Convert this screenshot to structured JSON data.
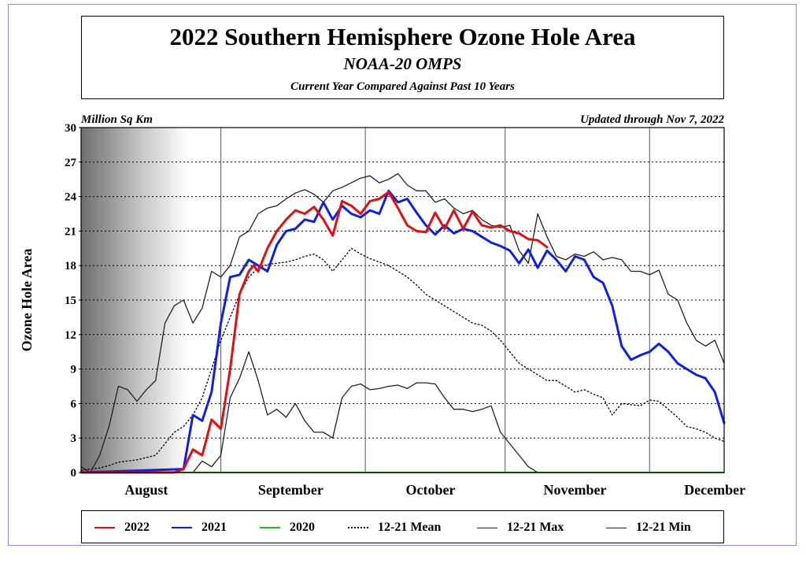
{
  "header": {
    "title": "2022 Southern Hemisphere Ozone Hole Area",
    "subtitle": "NOAA-20 OMPS",
    "note": "Current Year Compared Against Past 10 Years"
  },
  "chart_data": {
    "type": "line",
    "units_label": "Million Sq Km",
    "updated_label": "Updated through Nov 7, 2022",
    "ylabel": "Ozone Hole Area",
    "ylim": [
      0,
      30
    ],
    "yticks": [
      0,
      3,
      6,
      9,
      12,
      15,
      18,
      21,
      24,
      27,
      30
    ],
    "xlim": [
      0,
      138
    ],
    "x_unit": "days since July 17",
    "month_labels": [
      {
        "label": "August",
        "x": 14
      },
      {
        "label": "September",
        "x": 45
      },
      {
        "label": "October",
        "x": 75
      },
      {
        "label": "November",
        "x": 106
      },
      {
        "label": "December",
        "x": 136
      }
    ],
    "month_boundaries": [
      30,
      61,
      91,
      122
    ],
    "grid": true,
    "shaded_region": {
      "x_start": 0,
      "x_end": 23,
      "note": "polar night shading"
    },
    "series": [
      {
        "name": "2022",
        "color": "#e01010",
        "style": "solid",
        "width": 3,
        "points": [
          [
            0,
            0
          ],
          [
            20,
            0
          ],
          [
            22,
            0.3
          ],
          [
            24,
            2
          ],
          [
            26,
            1.5
          ],
          [
            28,
            4.6
          ],
          [
            30,
            3.8
          ],
          [
            32,
            9
          ],
          [
            34,
            15.5
          ],
          [
            36,
            17.5
          ],
          [
            37,
            18
          ],
          [
            38,
            17.5
          ],
          [
            39,
            18.5
          ],
          [
            40,
            19.5
          ],
          [
            42,
            21
          ],
          [
            44,
            22
          ],
          [
            46,
            22.8
          ],
          [
            48,
            22.5
          ],
          [
            50,
            23.1
          ],
          [
            52,
            22
          ],
          [
            54,
            20.6
          ],
          [
            56,
            23.6
          ],
          [
            58,
            23.2
          ],
          [
            60,
            22.5
          ],
          [
            62,
            23.6
          ],
          [
            64,
            23.8
          ],
          [
            66,
            24.4
          ],
          [
            68,
            23
          ],
          [
            70,
            21.5
          ],
          [
            72,
            21
          ],
          [
            74,
            20.9
          ],
          [
            76,
            22.6
          ],
          [
            78,
            21.2
          ],
          [
            80,
            22.8
          ],
          [
            82,
            21.2
          ],
          [
            84,
            22.7
          ],
          [
            86,
            21.5
          ],
          [
            88,
            21.3
          ],
          [
            90,
            21.5
          ],
          [
            92,
            21
          ],
          [
            94,
            20.8
          ],
          [
            96,
            20.3
          ],
          [
            98,
            20.2
          ],
          [
            100,
            19.6
          ]
        ]
      },
      {
        "name": "2021",
        "color": "#1020e0",
        "style": "solid",
        "width": 3,
        "points": [
          [
            0,
            0
          ],
          [
            22,
            0.3
          ],
          [
            24,
            5
          ],
          [
            26,
            4.5
          ],
          [
            28,
            7
          ],
          [
            30,
            13
          ],
          [
            32,
            17
          ],
          [
            34,
            17.2
          ],
          [
            36,
            18.5
          ],
          [
            38,
            18
          ],
          [
            40,
            17.5
          ],
          [
            42,
            19.8
          ],
          [
            44,
            21
          ],
          [
            46,
            21.2
          ],
          [
            48,
            22
          ],
          [
            50,
            21.8
          ],
          [
            52,
            23.5
          ],
          [
            54,
            22
          ],
          [
            56,
            23.2
          ],
          [
            58,
            22.5
          ],
          [
            60,
            22.2
          ],
          [
            62,
            22.8
          ],
          [
            64,
            22.5
          ],
          [
            66,
            24.5
          ],
          [
            68,
            23.5
          ],
          [
            70,
            23.8
          ],
          [
            72,
            22.6
          ],
          [
            74,
            21.5
          ],
          [
            76,
            20.7
          ],
          [
            78,
            21.5
          ],
          [
            80,
            20.8
          ],
          [
            82,
            21.2
          ],
          [
            84,
            21
          ],
          [
            86,
            20.5
          ],
          [
            88,
            20
          ],
          [
            90,
            19.7
          ],
          [
            92,
            19.3
          ],
          [
            94,
            18.2
          ],
          [
            96,
            19.4
          ],
          [
            98,
            17.8
          ],
          [
            100,
            19.3
          ],
          [
            102,
            18.5
          ],
          [
            104,
            17.5
          ],
          [
            106,
            18.8
          ],
          [
            108,
            18.5
          ],
          [
            110,
            17
          ],
          [
            112,
            16.5
          ],
          [
            114,
            14.5
          ],
          [
            116,
            11
          ],
          [
            118,
            9.8
          ],
          [
            120,
            10.2
          ],
          [
            122,
            10.5
          ],
          [
            124,
            11.2
          ],
          [
            126,
            10.5
          ],
          [
            128,
            9.5
          ],
          [
            130,
            9
          ],
          [
            132,
            8.5
          ],
          [
            134,
            8.2
          ],
          [
            136,
            7
          ],
          [
            138,
            4.3
          ]
        ]
      },
      {
        "name": "2020",
        "color": "#20c020",
        "style": "solid",
        "width": 2,
        "points": [
          [
            0,
            0
          ],
          [
            138,
            0
          ]
        ]
      },
      {
        "name": "12-21 Mean",
        "color": "#000000",
        "style": "dotted",
        "width": 1.3,
        "points": [
          [
            0,
            0.2
          ],
          [
            4,
            0.4
          ],
          [
            6,
            0.6
          ],
          [
            8,
            0.9
          ],
          [
            12,
            1.1
          ],
          [
            16,
            1.5
          ],
          [
            18,
            2.5
          ],
          [
            20,
            3.5
          ],
          [
            22,
            4
          ],
          [
            24,
            5
          ],
          [
            26,
            6.5
          ],
          [
            28,
            9
          ],
          [
            30,
            11.5
          ],
          [
            32,
            13.5
          ],
          [
            34,
            15.5
          ],
          [
            36,
            17
          ],
          [
            38,
            17.8
          ],
          [
            40,
            18.1
          ],
          [
            42,
            18.2
          ],
          [
            44,
            18.3
          ],
          [
            46,
            18.5
          ],
          [
            48,
            18.8
          ],
          [
            50,
            19
          ],
          [
            52,
            18.5
          ],
          [
            54,
            17.5
          ],
          [
            56,
            18.5
          ],
          [
            58,
            19.5
          ],
          [
            60,
            19
          ],
          [
            62,
            18.6
          ],
          [
            64,
            18.3
          ],
          [
            66,
            18
          ],
          [
            68,
            17.5
          ],
          [
            70,
            17
          ],
          [
            72,
            16.3
          ],
          [
            74,
            15.5
          ],
          [
            76,
            15
          ],
          [
            78,
            14.5
          ],
          [
            80,
            14
          ],
          [
            82,
            13.5
          ],
          [
            84,
            13
          ],
          [
            86,
            12.8
          ],
          [
            88,
            12.3
          ],
          [
            90,
            11.5
          ],
          [
            92,
            10.5
          ],
          [
            94,
            9.5
          ],
          [
            96,
            9
          ],
          [
            98,
            8.5
          ],
          [
            100,
            8
          ],
          [
            102,
            8
          ],
          [
            104,
            7.5
          ],
          [
            106,
            7
          ],
          [
            108,
            7.2
          ],
          [
            110,
            6.8
          ],
          [
            112,
            6.5
          ],
          [
            114,
            5
          ],
          [
            116,
            6
          ],
          [
            118,
            5.9
          ],
          [
            120,
            5.8
          ],
          [
            122,
            6.3
          ],
          [
            124,
            6.2
          ],
          [
            126,
            5.5
          ],
          [
            128,
            4.8
          ],
          [
            130,
            4
          ],
          [
            132,
            3.8
          ],
          [
            134,
            3.5
          ],
          [
            136,
            3
          ],
          [
            138,
            2.7
          ]
        ]
      },
      {
        "name": "12-21 Max",
        "color": "#202020",
        "style": "solid",
        "width": 1.3,
        "points": [
          [
            0,
            0.5
          ],
          [
            2,
            0
          ],
          [
            4,
            1.5
          ],
          [
            6,
            4
          ],
          [
            8,
            7.5
          ],
          [
            10,
            7.2
          ],
          [
            12,
            6.2
          ],
          [
            14,
            7.2
          ],
          [
            16,
            8
          ],
          [
            18,
            13
          ],
          [
            20,
            14.5
          ],
          [
            22,
            15
          ],
          [
            24,
            13
          ],
          [
            26,
            14.3
          ],
          [
            28,
            17.5
          ],
          [
            30,
            17
          ],
          [
            32,
            18
          ],
          [
            34,
            20.5
          ],
          [
            36,
            21
          ],
          [
            38,
            22.5
          ],
          [
            40,
            23
          ],
          [
            42,
            23.2
          ],
          [
            44,
            23.8
          ],
          [
            46,
            24.3
          ],
          [
            48,
            24.6
          ],
          [
            50,
            24.2
          ],
          [
            52,
            23.5
          ],
          [
            54,
            24.5
          ],
          [
            56,
            24.8
          ],
          [
            58,
            25.2
          ],
          [
            60,
            25.6
          ],
          [
            62,
            25.8
          ],
          [
            64,
            25.2
          ],
          [
            66,
            25.5
          ],
          [
            68,
            26
          ],
          [
            70,
            25
          ],
          [
            72,
            24.5
          ],
          [
            74,
            24.5
          ],
          [
            76,
            23.5
          ],
          [
            78,
            23.8
          ],
          [
            80,
            23
          ],
          [
            82,
            22.5
          ],
          [
            84,
            22.8
          ],
          [
            86,
            22
          ],
          [
            88,
            21.5
          ],
          [
            90,
            21.3
          ],
          [
            92,
            21.5
          ],
          [
            94,
            19.3
          ],
          [
            96,
            18.2
          ],
          [
            98,
            22.5
          ],
          [
            100,
            20.5
          ],
          [
            102,
            18.8
          ],
          [
            104,
            18.5
          ],
          [
            106,
            19
          ],
          [
            108,
            18.8
          ],
          [
            110,
            19.2
          ],
          [
            112,
            18.5
          ],
          [
            114,
            18.7
          ],
          [
            116,
            18.5
          ],
          [
            118,
            17.5
          ],
          [
            120,
            17.5
          ],
          [
            122,
            17.2
          ],
          [
            124,
            17.6
          ],
          [
            126,
            15.5
          ],
          [
            128,
            15
          ],
          [
            130,
            13
          ],
          [
            132,
            11.5
          ],
          [
            134,
            11
          ],
          [
            136,
            11.5
          ],
          [
            138,
            9.5
          ]
        ]
      },
      {
        "name": "12-21 Min",
        "color": "#202020",
        "style": "solid",
        "width": 1.3,
        "points": [
          [
            0,
            0
          ],
          [
            24,
            0
          ],
          [
            26,
            1
          ],
          [
            28,
            0.5
          ],
          [
            30,
            1.5
          ],
          [
            32,
            6.5
          ],
          [
            34,
            8.2
          ],
          [
            36,
            10.5
          ],
          [
            38,
            8
          ],
          [
            40,
            5
          ],
          [
            42,
            5.5
          ],
          [
            44,
            4.8
          ],
          [
            46,
            6
          ],
          [
            48,
            4.5
          ],
          [
            50,
            3.5
          ],
          [
            52,
            3.5
          ],
          [
            54,
            3
          ],
          [
            56,
            6.5
          ],
          [
            58,
            7.5
          ],
          [
            60,
            7.7
          ],
          [
            62,
            7.2
          ],
          [
            64,
            7.3
          ],
          [
            66,
            7.5
          ],
          [
            68,
            7.6
          ],
          [
            70,
            7.3
          ],
          [
            72,
            7.8
          ],
          [
            74,
            7.8
          ],
          [
            76,
            7.7
          ],
          [
            78,
            6.5
          ],
          [
            80,
            5.5
          ],
          [
            82,
            5.5
          ],
          [
            84,
            5.3
          ],
          [
            86,
            5.5
          ],
          [
            88,
            5.8
          ],
          [
            90,
            3.5
          ],
          [
            92,
            2.5
          ],
          [
            94,
            1.5
          ],
          [
            96,
            0.5
          ],
          [
            98,
            0
          ],
          [
            100,
            0
          ],
          [
            138,
            0
          ]
        ]
      }
    ]
  },
  "legend": [
    {
      "label": "2022",
      "color": "#e01010",
      "style": "solid"
    },
    {
      "label": "2021",
      "color": "#1020e0",
      "style": "solid"
    },
    {
      "label": "2020",
      "color": "#20c020",
      "style": "solid"
    },
    {
      "label": "12-21 Mean",
      "color": "#000000",
      "style": "dotted"
    },
    {
      "label": "12-21 Max",
      "color": "#202020",
      "style": "solid"
    },
    {
      "label": "12-21 Min",
      "color": "#202020",
      "style": "solid"
    }
  ]
}
